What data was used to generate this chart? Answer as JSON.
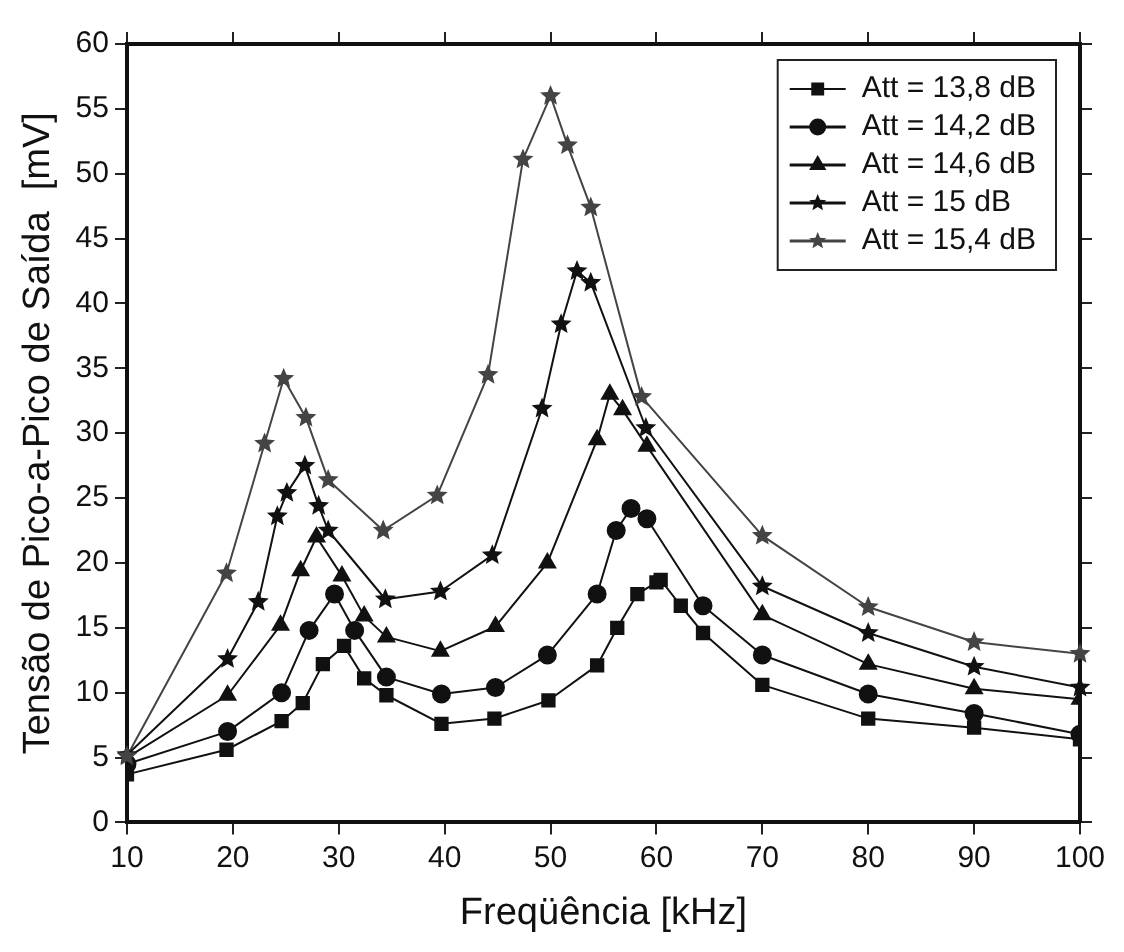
{
  "chart_data": {
    "type": "line",
    "xlabel": "Freqüência [kHz]",
    "ylabel": "Tensão de Pico-a-Pico de Saída  [mV]",
    "xlim": [
      10,
      100
    ],
    "xticks": [
      10,
      20,
      30,
      40,
      50,
      60,
      70,
      80,
      90,
      100
    ],
    "ylim": [
      0,
      60
    ],
    "yticks": [
      0,
      5,
      10,
      15,
      20,
      25,
      30,
      35,
      40,
      45,
      50,
      55,
      60
    ],
    "grid": false,
    "legend": "top right",
    "line_style": "solid",
    "series": [
      {
        "name": "Att = 13,8 dB",
        "color": "#111111",
        "marker": "square",
        "x": [
          10,
          19.4,
          24.6,
          26.6,
          28.5,
          30.5,
          32.4,
          34.5,
          39.7,
          44.7,
          49.8,
          54.4,
          56.3,
          58.2,
          60,
          60.4,
          62.3,
          64.4,
          70,
          80,
          90,
          100
        ],
        "values": [
          3.7,
          5.6,
          7.8,
          9.2,
          12.2,
          13.6,
          11.1,
          9.8,
          7.6,
          8,
          9.4,
          12.1,
          15,
          17.6,
          18.5,
          18.7,
          16.7,
          14.6,
          10.6,
          8,
          7.3,
          6.4
        ]
      },
      {
        "name": "Att = 14,2 dB",
        "color": "#111111",
        "marker": "circle",
        "x": [
          10,
          19.5,
          24.6,
          27.2,
          29.6,
          31.5,
          34.5,
          39.7,
          44.8,
          49.7,
          54.4,
          56.2,
          57.6,
          59.1,
          64.4,
          70,
          80,
          90,
          100
        ],
        "values": [
          4.5,
          7,
          10,
          14.8,
          17.6,
          14.8,
          11.2,
          9.9,
          10.4,
          12.9,
          17.6,
          22.5,
          24.2,
          23.4,
          16.7,
          12.9,
          9.9,
          8.4,
          6.8
        ]
      },
      {
        "name": "Att = 14,6 dB",
        "color": "#111111",
        "marker": "triangle",
        "x": [
          10,
          19.5,
          24.5,
          26.4,
          27.9,
          30.3,
          32.4,
          34.5,
          39.6,
          44.8,
          49.7,
          54.4,
          55.6,
          56.8,
          59.1,
          70,
          80,
          90,
          100
        ],
        "values": [
          5,
          9.8,
          15.2,
          19.4,
          22,
          19,
          15.9,
          14.3,
          13.2,
          15.1,
          20,
          29.5,
          33,
          31.8,
          29,
          16,
          12.2,
          10.3,
          9.5
        ]
      },
      {
        "name": "Att = 15 dB",
        "color": "#111111",
        "marker": "star",
        "x": [
          10,
          19.5,
          22.4,
          24.2,
          25.1,
          26.8,
          28.1,
          29,
          34.4,
          39.6,
          44.5,
          49.2,
          51,
          52.5,
          53.8,
          59,
          70,
          80,
          90,
          100
        ],
        "values": [
          5.2,
          12.6,
          17,
          23.6,
          25.4,
          27.5,
          24.4,
          22.5,
          17.2,
          17.8,
          20.6,
          31.9,
          38.4,
          42.5,
          41.6,
          30.4,
          18.2,
          14.6,
          12,
          10.4
        ]
      },
      {
        "name": "Att = 15,4 dB",
        "color": "#444444",
        "marker": "star",
        "x": [
          10,
          19.4,
          23,
          24.8,
          26.9,
          29,
          34.2,
          39.3,
          44.1,
          47.4,
          50,
          51.6,
          53.8,
          58.6,
          70,
          80,
          90,
          100
        ],
        "values": [
          5.1,
          19.2,
          29.2,
          34.2,
          31.2,
          26.4,
          22.5,
          25.2,
          34.5,
          51.1,
          56,
          52.2,
          47.4,
          32.8,
          22.1,
          16.6,
          13.9,
          13
        ]
      }
    ]
  }
}
